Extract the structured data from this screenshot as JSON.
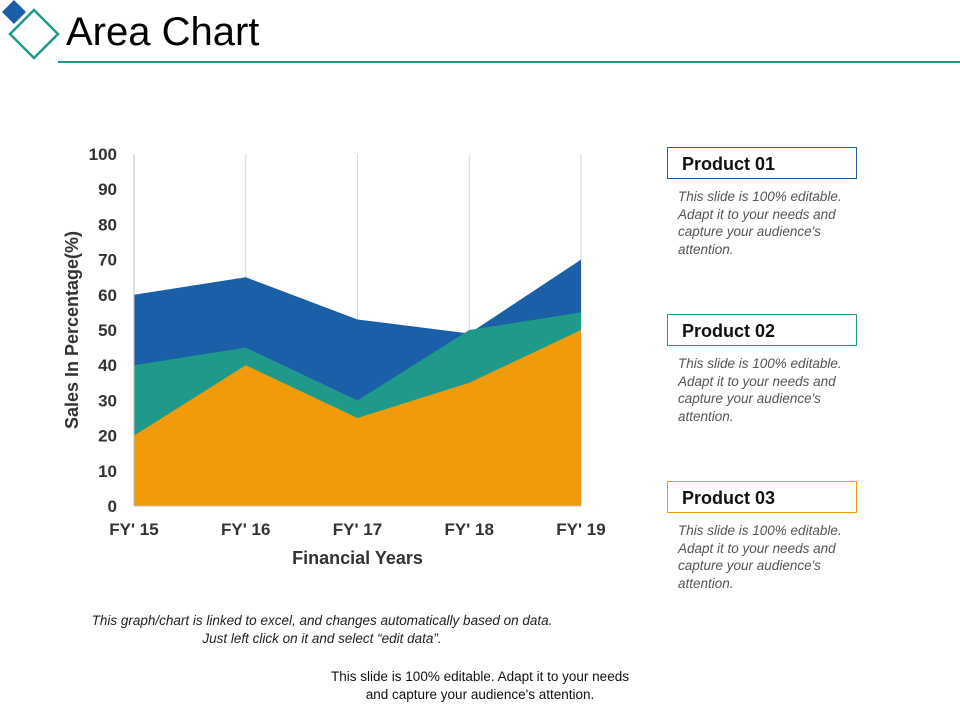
{
  "header": {
    "title": "Area Chart",
    "accent_color": "#1F9A8A",
    "diamond_fill_color": "#1A5FA8"
  },
  "chart_data": {
    "type": "area",
    "stacked": false,
    "categories": [
      "FY' 15",
      "FY' 16",
      "FY' 17",
      "FY' 18",
      "FY' 19"
    ],
    "series": [
      {
        "name": "Product 01",
        "values": [
          60,
          65,
          53,
          49,
          70
        ],
        "color": "#1A5FA8"
      },
      {
        "name": "Product 02",
        "values": [
          40,
          45,
          30,
          50,
          55
        ],
        "color": "#1F9A8A"
      },
      {
        "name": "Product 03",
        "values": [
          20,
          40,
          25,
          35,
          50
        ],
        "color": "#F29B0A"
      }
    ],
    "xlabel": "Financial Years",
    "ylabel": "Sales In Percentage(%)",
    "ylim": [
      0,
      100
    ],
    "yticks": [
      0,
      10,
      20,
      30,
      40,
      50,
      60,
      70,
      80,
      90,
      100
    ],
    "grid": "vertical",
    "legend_position": "right"
  },
  "legend": {
    "items": [
      {
        "label": "Product 01",
        "desc": "This slide is 100% editable. Adapt it to your needs and capture your audience's attention.",
        "border_color": "#1A5FA8"
      },
      {
        "label": "Product 02",
        "desc": "This slide is 100% editable. Adapt it to your needs and capture your audience's attention.",
        "border_color": "#1F9A8A"
      },
      {
        "label": "Product 03",
        "desc": "This slide is 100% editable. Adapt it to your needs and capture your audience's attention.",
        "border_color": "#F29B0A"
      }
    ]
  },
  "notes": {
    "chart_note_line1": "This graph/chart is linked to excel, and changes automatically based on data.",
    "chart_note_line2": "Just left click on it and select “edit data”.",
    "footer": "This slide is 100% editable. Adapt it to your needs and capture your audience's attention."
  }
}
